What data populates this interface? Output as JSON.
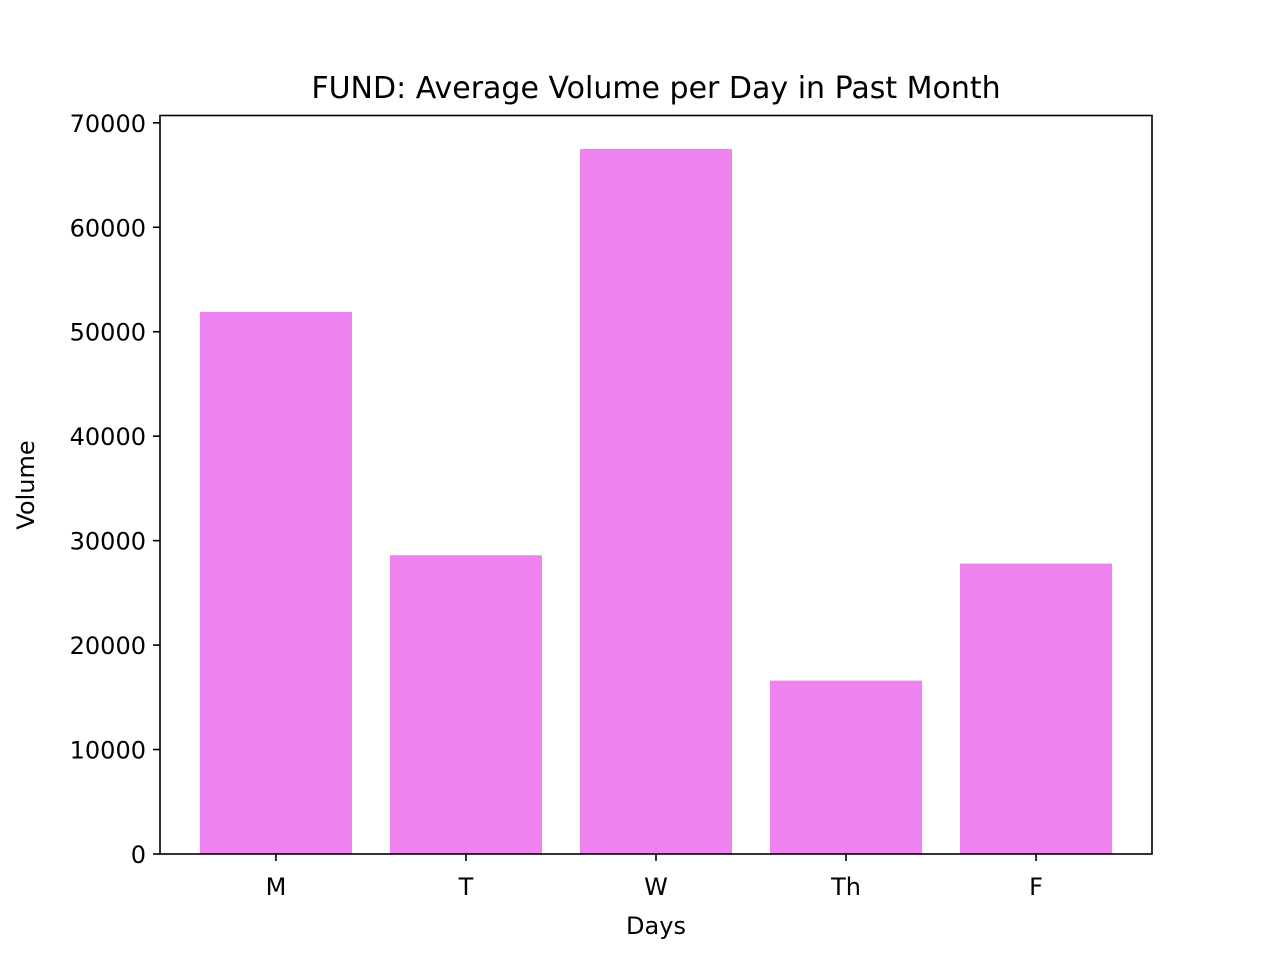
{
  "chart_data": {
    "type": "bar",
    "title": "FUND: Average Volume per Day in Past Month",
    "xlabel": "Days",
    "ylabel": "Volume",
    "categories": [
      "M",
      "T",
      "W",
      "Th",
      "F"
    ],
    "values": [
      51900,
      28600,
      67500,
      16600,
      27800
    ],
    "ylim": [
      0,
      70700
    ],
    "yticks": [
      0,
      10000,
      20000,
      30000,
      40000,
      50000,
      60000,
      70000
    ],
    "bar_color": "#ee82ee",
    "grid": false,
    "legend": "none"
  }
}
